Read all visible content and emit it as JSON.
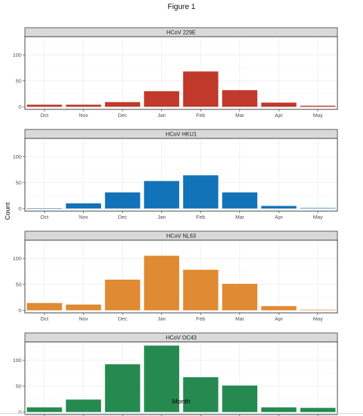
{
  "figure_title": "Figure 1",
  "chart_data": {
    "type": "bar",
    "xlabel": "Month",
    "ylabel": "Count",
    "categories": [
      "Oct",
      "Nov",
      "Dec",
      "Jan",
      "Feb",
      "Mar",
      "Apr",
      "May"
    ],
    "ylim": [
      -5,
      135
    ],
    "yticks": [
      0,
      50,
      100
    ],
    "grid": true,
    "legend": "none",
    "facets": [
      {
        "title": "HCoV 229E",
        "color": "#c0392b",
        "values": [
          4,
          4,
          9,
          30,
          68,
          32,
          8,
          2
        ]
      },
      {
        "title": "HCoV HKU1",
        "color": "#1273b9",
        "values": [
          0,
          10,
          31,
          53,
          64,
          31,
          5,
          1
        ]
      },
      {
        "title": "HCoV NL63",
        "color": "#e08b33",
        "values": [
          14,
          11,
          59,
          105,
          78,
          51,
          8,
          1
        ]
      },
      {
        "title": "HCoV OC43",
        "color": "#268a50",
        "values": [
          9,
          24,
          92,
          128,
          67,
          51,
          9,
          8
        ]
      }
    ]
  }
}
